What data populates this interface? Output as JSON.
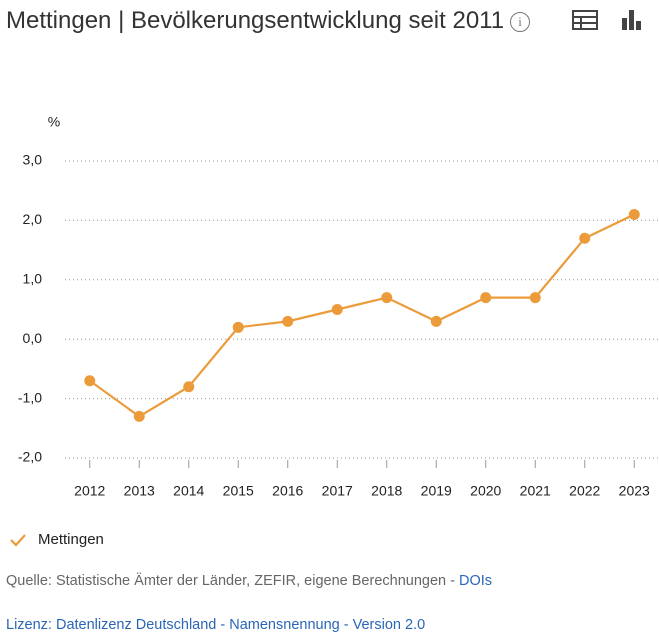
{
  "chart_data": {
    "type": "line",
    "title": "Mettingen | Bevölkerungsentwicklung seit 2011",
    "y_label": "%",
    "categories": [
      "2012",
      "2013",
      "2014",
      "2015",
      "2016",
      "2017",
      "2018",
      "2019",
      "2020",
      "2021",
      "2022",
      "2023"
    ],
    "series": [
      {
        "name": "Mettingen",
        "color": "#ec9b3b",
        "values": [
          -0.7,
          -1.3,
          -0.8,
          0.2,
          0.3,
          0.5,
          0.7,
          0.3,
          0.7,
          0.7,
          1.7,
          2.1
        ]
      }
    ],
    "ylim": [
      -2,
      3
    ],
    "yticks": [
      {
        "value": -2,
        "label": "-2,0"
      },
      {
        "value": -1,
        "label": "-1,0"
      },
      {
        "value": 0,
        "label": "0,0"
      },
      {
        "value": 1,
        "label": "1,0"
      },
      {
        "value": 2,
        "label": "2,0"
      },
      {
        "value": 3,
        "label": "3,0"
      }
    ],
    "grid": true,
    "source_text": "Quelle: Statistische Ämter der Länder, ZEFIR, eigene Berechnungen - ",
    "source_link": "DOIs",
    "license": "Lizenz: Datenlizenz Deutschland - Namensnennung - Version 2.0"
  }
}
